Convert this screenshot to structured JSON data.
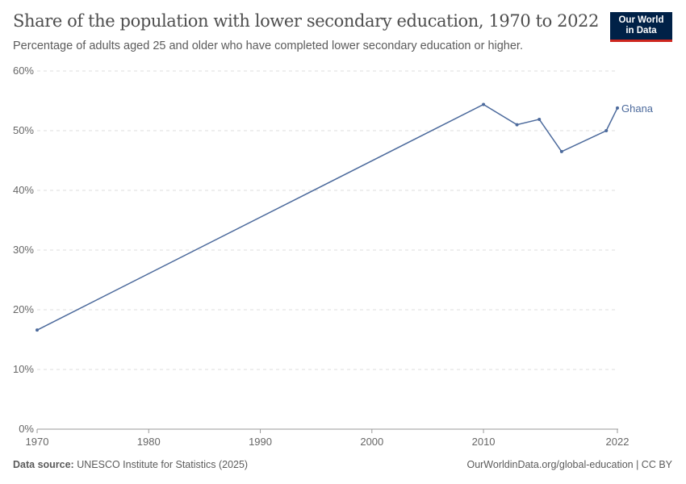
{
  "header": {
    "title": "Share of the population with lower secondary education, 1970 to 2022",
    "subtitle": "Percentage of adults aged 25 and older who have completed lower secondary education or higher.",
    "logo": "Our World in Data"
  },
  "footer": {
    "source_label": "Data source:",
    "source": "UNESCO Institute for Statistics (2025)",
    "link": "OurWorldinData.org/global-education | CC BY"
  },
  "chart_data": {
    "type": "line",
    "title": "Share of the population with lower secondary education, 1970 to 2022",
    "xlim": [
      1970,
      2022
    ],
    "ylim": [
      0,
      60
    ],
    "x_ticks": [
      "1970",
      "1980",
      "1990",
      "2000",
      "2010",
      "2022"
    ],
    "y_ticks": [
      "0%",
      "10%",
      "20%",
      "30%",
      "40%",
      "50%",
      "60%"
    ],
    "grid": "horizontal dashed",
    "color": "#4c6a9c",
    "series": [
      {
        "name": "Ghana",
        "x": [
          1970,
          2010,
          2013,
          2015,
          2017,
          2021,
          2022
        ],
        "values": [
          16.6,
          54.4,
          51.0,
          51.9,
          46.5,
          50.0,
          53.8
        ]
      }
    ]
  }
}
